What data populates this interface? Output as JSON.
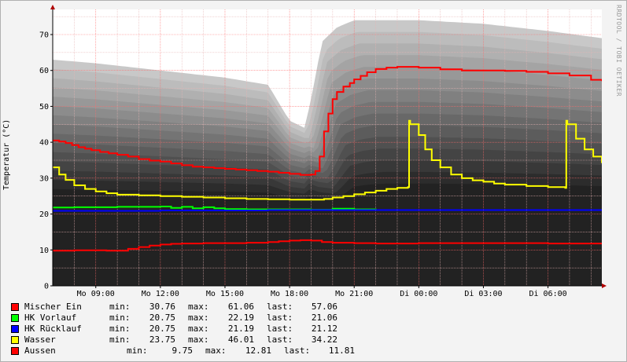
{
  "watermark": "RRDTOOL / TOBI OETIKER",
  "chart_data": {
    "type": "line",
    "ylabel": "Temperatur (°C)",
    "ylim": [
      0,
      77
    ],
    "yticks": [
      0,
      10,
      20,
      30,
      40,
      50,
      60,
      70
    ],
    "xlim": [
      7.0,
      32.5
    ],
    "xticks": [
      {
        "x": 9,
        "label": "Mo 09:00"
      },
      {
        "x": 12,
        "label": "Mo 12:00"
      },
      {
        "x": 15,
        "label": "Mo 15:00"
      },
      {
        "x": 18,
        "label": "Mo 18:00"
      },
      {
        "x": 21,
        "label": "Mo 21:00"
      },
      {
        "x": 24,
        "label": "Di 00:00"
      },
      {
        "x": 27,
        "label": "Di 03:00"
      },
      {
        "x": 30,
        "label": "Di 06:00"
      }
    ],
    "x_unit": "hours since Mo 00:00",
    "grid": true,
    "background": {
      "colors": [
        "#c8c8c8",
        "#bcbcbc",
        "#b0b0b0",
        "#a4a4a4",
        "#989898",
        "#8c8c8c",
        "#808080",
        "#747474",
        "#686868",
        "#5c5c5c",
        "#505050",
        "#444444",
        "#383838",
        "#2c2c2c",
        "#222222"
      ],
      "upper_envelope": [
        [
          7,
          63
        ],
        [
          9,
          62
        ],
        [
          12,
          60
        ],
        [
          15,
          58
        ],
        [
          17,
          56
        ],
        [
          18,
          46
        ],
        [
          18.7,
          44
        ],
        [
          19,
          52
        ],
        [
          19.5,
          68
        ],
        [
          20.2,
          72
        ],
        [
          21,
          74
        ],
        [
          24,
          74
        ],
        [
          27,
          73
        ],
        [
          30,
          71
        ],
        [
          32.5,
          69
        ]
      ],
      "lower_envelope": [
        [
          7,
          21
        ],
        [
          32.5,
          21
        ]
      ]
    },
    "series": [
      {
        "name": "Mischer Ein",
        "color": "#ff0000",
        "x": [
          7.0,
          7.3,
          7.6,
          7.9,
          8.2,
          8.5,
          8.8,
          9.2,
          9.6,
          10.0,
          10.5,
          11.0,
          11.5,
          12.0,
          12.5,
          13.0,
          13.5,
          14.0,
          14.5,
          15.0,
          15.5,
          16.0,
          16.5,
          17.0,
          17.5,
          18.0,
          18.5,
          19.0,
          19.2,
          19.4,
          19.6,
          19.8,
          20.0,
          20.2,
          20.5,
          20.8,
          21.0,
          21.3,
          21.6,
          22.0,
          22.5,
          23.0,
          23.5,
          24.0,
          25.0,
          26.0,
          27.0,
          28.0,
          29.0,
          30.0,
          31.0,
          32.0,
          32.5
        ],
        "values": [
          40.5,
          40.2,
          39.8,
          39.2,
          38.6,
          38.2,
          37.8,
          37.3,
          36.9,
          36.5,
          36.0,
          35.3,
          34.9,
          34.6,
          34.1,
          33.6,
          33.2,
          33.0,
          32.8,
          32.6,
          32.4,
          32.2,
          32.0,
          31.8,
          31.5,
          31.2,
          30.9,
          31.0,
          32.0,
          36.0,
          43.0,
          48.0,
          52.0,
          54.0,
          55.5,
          56.5,
          57.5,
          58.5,
          59.5,
          60.4,
          60.8,
          61.0,
          61.0,
          60.8,
          60.3,
          60.0,
          60.0,
          59.9,
          59.6,
          59.2,
          58.6,
          57.4,
          57.06
        ]
      },
      {
        "name": "HK Vorlauf",
        "color": "#00ff00",
        "x": [
          7.0,
          8.0,
          9.0,
          10.0,
          11.0,
          12.0,
          12.5,
          13.0,
          13.5,
          14.0,
          14.5,
          15.0,
          16.0,
          17.0,
          18.0,
          19.0,
          20.0,
          21.0,
          22.0,
          24.0,
          26.0,
          28.0,
          30.0,
          32.5
        ],
        "values": [
          21.8,
          21.9,
          21.9,
          22.0,
          22.0,
          22.1,
          21.7,
          22.0,
          21.6,
          21.9,
          21.6,
          21.4,
          21.3,
          21.3,
          21.3,
          21.2,
          21.5,
          21.3,
          21.1,
          21.1,
          21.1,
          21.1,
          21.1,
          21.06
        ]
      },
      {
        "name": "HK Rücklauf",
        "color": "#0000ff",
        "x": [
          7.0,
          12.0,
          17.0,
          22.0,
          27.0,
          32.5
        ],
        "values": [
          20.9,
          21.0,
          21.1,
          21.1,
          21.1,
          21.12
        ]
      },
      {
        "name": "Wasser",
        "color": "#ffff00",
        "x": [
          7.0,
          7.3,
          7.6,
          8.0,
          8.5,
          9.0,
          9.5,
          10.0,
          11.0,
          12.0,
          13.0,
          14.0,
          15.0,
          16.0,
          17.0,
          18.0,
          19.0,
          19.6,
          20.0,
          20.5,
          21.0,
          21.5,
          22.0,
          22.5,
          23.0,
          23.5,
          23.55,
          23.6,
          24.0,
          24.3,
          24.6,
          25.0,
          25.5,
          26.0,
          26.5,
          27.0,
          27.5,
          28.0,
          29.0,
          30.0,
          30.8,
          30.85,
          30.9,
          31.3,
          31.7,
          32.1,
          32.5
        ],
        "values": [
          33.0,
          31.0,
          29.5,
          28.0,
          27.0,
          26.3,
          25.8,
          25.4,
          25.2,
          25.0,
          24.8,
          24.6,
          24.4,
          24.2,
          24.1,
          24.0,
          24.0,
          24.2,
          24.6,
          25.0,
          25.5,
          26.0,
          26.5,
          27.0,
          27.3,
          27.5,
          46.0,
          45.0,
          42.0,
          38.0,
          35.0,
          33.0,
          31.0,
          30.0,
          29.4,
          29.0,
          28.5,
          28.2,
          27.8,
          27.5,
          27.3,
          46.0,
          45.0,
          41.0,
          38.0,
          36.0,
          34.22
        ]
      },
      {
        "name": "Aussen",
        "color": "#ff0000",
        "x": [
          7.0,
          8.0,
          9.0,
          9.5,
          10.0,
          10.5,
          11.0,
          11.5,
          12.0,
          12.5,
          13.0,
          14.0,
          15.0,
          16.0,
          17.0,
          17.5,
          18.0,
          18.5,
          19.0,
          19.5,
          20.0,
          21.0,
          22.0,
          23.0,
          24.0,
          25.0,
          26.0,
          27.0,
          28.0,
          29.0,
          30.0,
          31.0,
          32.0,
          32.5
        ],
        "values": [
          9.8,
          9.9,
          9.9,
          9.8,
          9.8,
          10.3,
          10.8,
          11.2,
          11.5,
          11.7,
          11.8,
          11.9,
          11.9,
          12.0,
          12.2,
          12.4,
          12.6,
          12.7,
          12.6,
          12.2,
          12.0,
          11.9,
          11.8,
          11.8,
          11.9,
          11.9,
          11.9,
          11.9,
          11.9,
          11.9,
          11.8,
          11.8,
          11.8,
          11.81
        ]
      }
    ]
  },
  "legend": [
    {
      "name": "Mischer Ein",
      "color": "#ff0000",
      "min_label": "min:",
      "min": "30.76",
      "max_label": "max:",
      "max": "61.06",
      "last_label": "last:",
      "last": "57.06"
    },
    {
      "name": "HK Vorlauf",
      "color": "#00ff00",
      "min_label": "min:",
      "min": "20.75",
      "max_label": "max:",
      "max": "22.19",
      "last_label": "last:",
      "last": "21.06"
    },
    {
      "name": "HK Rücklauf",
      "color": "#0000ff",
      "min_label": "min:",
      "min": "20.75",
      "max_label": "max:",
      "max": "21.19",
      "last_label": "last:",
      "last": "21.12"
    },
    {
      "name": "Wasser",
      "color": "#ffff00",
      "min_label": "min:",
      "min": "23.75",
      "max_label": "max:",
      "max": "46.01",
      "last_label": "last:",
      "last": "34.22"
    },
    {
      "name": "Aussen",
      "color": "#ff0000",
      "min_label": "min:",
      "min": "9.75",
      "max_label": "max:",
      "max": "12.81",
      "last_label": "last:",
      "last": "11.81"
    }
  ]
}
